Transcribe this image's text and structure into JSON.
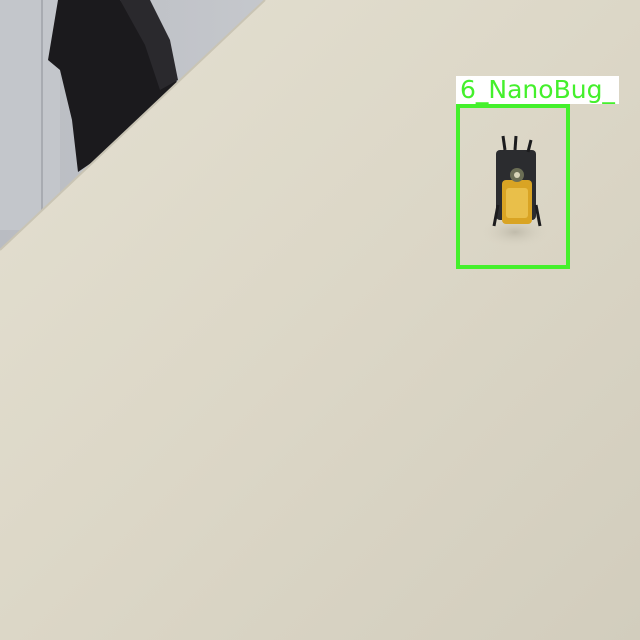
{
  "detection": {
    "label": "6_NanoBug_",
    "box_color": "#44f02c"
  },
  "scene": {
    "table_color": "#ddd8c9",
    "wall_color": "#c9ccd0"
  }
}
